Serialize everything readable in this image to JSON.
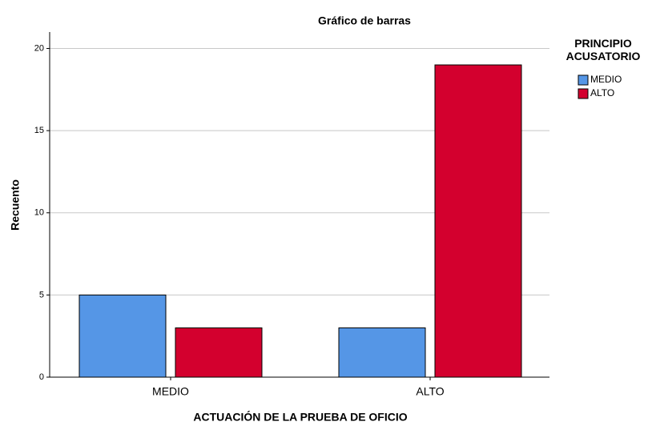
{
  "chart_data": {
    "type": "bar",
    "title": "Gráfico de barras",
    "x_label": "ACTUACIÓN DE LA PRUEBA DE OFICIO",
    "y_label": "Recuento",
    "legend_title": "PRINCIPIO ACUSATORIO",
    "categories": [
      "MEDIO",
      "ALTO"
    ],
    "series": [
      {
        "name": "MEDIO",
        "color": "#5596e6",
        "values": [
          5,
          3
        ]
      },
      {
        "name": "ALTO",
        "color": "#d3002e",
        "values": [
          3,
          19
        ]
      }
    ],
    "ylim": [
      0,
      21
    ],
    "yticks": [
      0,
      5,
      10,
      15,
      20
    ],
    "grid": true,
    "legend": "right"
  }
}
